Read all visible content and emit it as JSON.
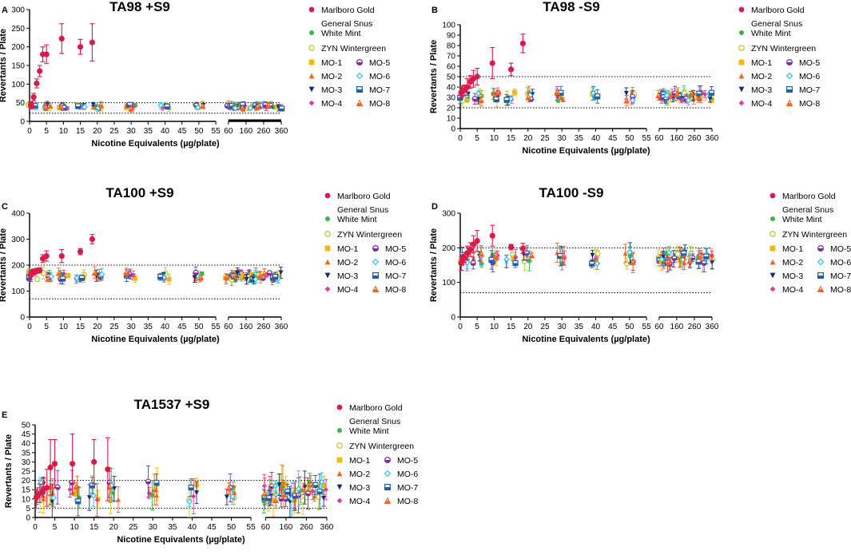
{
  "figure": {
    "x_axis_label": "Nicotine Equivalents (µg/plate)",
    "y_axis_label": "Revertants / Plate"
  },
  "legend": [
    {
      "key": "marlboro",
      "label": "Marlboro Gold",
      "color": "#d81b4a",
      "shape": "circle"
    },
    {
      "key": "general",
      "label": "General Snus\nWhite Mint",
      "color": "#3cb44b",
      "shape": "circle"
    },
    {
      "key": "zyn",
      "label": "ZYN Wintergreen",
      "color": "#b5d334",
      "shape": "circle-open"
    },
    {
      "key": "mo1",
      "label": "MO-1",
      "color": "#f5b800",
      "shape": "square"
    },
    {
      "key": "mo2",
      "label": "MO-2",
      "color": "#f26522",
      "shape": "triangle"
    },
    {
      "key": "mo3",
      "label": "MO-3",
      "color": "#1a2a6c",
      "shape": "triangle-down"
    },
    {
      "key": "mo4",
      "label": "MO-4",
      "color": "#e6399b",
      "shape": "diamond"
    },
    {
      "key": "mo5",
      "label": "MO-5",
      "color": "#7b2f9e",
      "shape": "circle-half"
    },
    {
      "key": "mo6",
      "label": "MO-6",
      "color": "#29c3e8",
      "shape": "diamond-open"
    },
    {
      "key": "mo7",
      "label": "MO-7",
      "color": "#1f5fa8",
      "shape": "square-half"
    },
    {
      "key": "mo8",
      "label": "MO-8",
      "color": "#f26522",
      "shape": "triangle-half"
    }
  ],
  "chart_data": [
    {
      "panel": "A",
      "title": "TA98 +S9",
      "type": "scatter",
      "ylim": [
        0,
        300
      ],
      "yticks": [
        0,
        50,
        100,
        150,
        200,
        250,
        300
      ],
      "reference_lines": [
        50,
        22
      ],
      "x_segments": [
        {
          "range": [
            0,
            55
          ],
          "ticks": [
            0,
            5,
            10,
            15,
            20,
            25,
            30,
            35,
            40,
            45,
            50,
            55
          ]
        },
        {
          "range": [
            60,
            360
          ],
          "ticks": [
            60,
            160,
            260,
            360
          ]
        }
      ],
      "xlabel": "Nicotine Equivalents (µg/plate)",
      "ylabel": "Revertants / Plate",
      "series": [
        {
          "key": "marlboro",
          "points": [
            [
              0.3,
              45,
              8
            ],
            [
              0.6,
              40,
              6
            ],
            [
              1.2,
              65,
              10
            ],
            [
              2.1,
              102,
              12
            ],
            [
              3,
              135,
              15
            ],
            [
              3.9,
              180,
              20
            ],
            [
              5,
              180,
              25
            ],
            [
              9.5,
              222,
              40
            ],
            [
              15,
              200,
              20
            ],
            [
              18.5,
              212,
              50
            ]
          ]
        }
      ],
      "cluster_centers": [
        1,
        5,
        10,
        15,
        20,
        30,
        40,
        50,
        70,
        95,
        120,
        160,
        190,
        230,
        290,
        340
      ],
      "cluster_band": [
        40,
        8
      ]
    },
    {
      "panel": "B",
      "title": "TA98 -S9",
      "type": "scatter",
      "ylim": [
        0,
        100
      ],
      "yticks": [
        0,
        10,
        20,
        30,
        40,
        50,
        60,
        70,
        80,
        90,
        100
      ],
      "reference_lines": [
        50,
        20
      ],
      "x_segments": [
        {
          "range": [
            0,
            55
          ],
          "ticks": [
            0,
            5,
            10,
            15,
            20,
            25,
            30,
            35,
            40,
            45,
            50,
            55
          ]
        },
        {
          "range": [
            60,
            360
          ],
          "ticks": [
            60,
            160,
            260,
            360
          ]
        }
      ],
      "xlabel": "Nicotine Equivalents (µg/plate)",
      "ylabel": "Revertants / Plate",
      "series": [
        {
          "key": "marlboro",
          "points": [
            [
              0.3,
              35,
              5
            ],
            [
              0.6,
              36,
              5
            ],
            [
              1.2,
              37,
              5
            ],
            [
              2.1,
              40,
              8
            ],
            [
              3,
              45,
              6
            ],
            [
              3.9,
              48,
              8
            ],
            [
              5,
              50,
              8
            ],
            [
              9.5,
              63,
              15
            ],
            [
              15,
              57,
              6
            ],
            [
              18.5,
              82,
              9
            ]
          ]
        }
      ],
      "cluster_centers": [
        1,
        5,
        10,
        15,
        20,
        30,
        40,
        50,
        70,
        95,
        120,
        160,
        190,
        230,
        290,
        340
      ],
      "cluster_band": [
        31,
        6
      ]
    },
    {
      "panel": "C",
      "title": "TA100 +S9",
      "type": "scatter",
      "ylim": [
        0,
        400
      ],
      "yticks": [
        0,
        100,
        200,
        300,
        400
      ],
      "reference_lines": [
        200,
        70
      ],
      "x_segments": [
        {
          "range": [
            0,
            55
          ],
          "ticks": [
            0,
            5,
            10,
            15,
            20,
            25,
            30,
            35,
            40,
            45,
            50,
            55
          ]
        },
        {
          "range": [
            60,
            360
          ],
          "ticks": [
            60,
            160,
            260,
            360
          ]
        }
      ],
      "xlabel": "Nicotine Equivalents (µg/plate)",
      "ylabel": "Revertants / Plate",
      "series": [
        {
          "key": "marlboro",
          "points": [
            [
              0.3,
              160,
              15
            ],
            [
              0.6,
              170,
              12
            ],
            [
              1.2,
              175,
              10
            ],
            [
              2.1,
              178,
              10
            ],
            [
              3,
              180,
              10
            ],
            [
              3.9,
              225,
              15
            ],
            [
              5,
              235,
              20
            ],
            [
              9.5,
              235,
              25
            ],
            [
              15,
              252,
              12
            ],
            [
              18.5,
              300,
              18
            ]
          ]
        }
      ],
      "cluster_centers": [
        1,
        5,
        10,
        15,
        20,
        30,
        40,
        50,
        70,
        95,
        120,
        160,
        190,
        230,
        290,
        340
      ],
      "cluster_band": [
        158,
        20
      ]
    },
    {
      "panel": "D",
      "title": "TA100 -S9",
      "type": "scatter",
      "ylim": [
        0,
        300
      ],
      "yticks": [
        0,
        100,
        200,
        300
      ],
      "reference_lines": [
        200,
        70
      ],
      "x_segments": [
        {
          "range": [
            0,
            55
          ],
          "ticks": [
            0,
            5,
            10,
            15,
            20,
            25,
            30,
            35,
            40,
            45,
            50,
            55
          ]
        },
        {
          "range": [
            60,
            360
          ],
          "ticks": [
            60,
            160,
            260,
            360
          ]
        }
      ],
      "xlabel": "Nicotine Equivalents (µg/plate)",
      "ylabel": "Revertants / Plate",
      "series": [
        {
          "key": "marlboro",
          "points": [
            [
              0.3,
              155,
              20
            ],
            [
              0.6,
              165,
              15
            ],
            [
              1.2,
              170,
              12
            ],
            [
              2.1,
              185,
              20
            ],
            [
              3,
              195,
              20
            ],
            [
              3.9,
              210,
              25
            ],
            [
              5,
              220,
              30
            ],
            [
              9.5,
              235,
              30
            ],
            [
              15,
              202,
              8
            ],
            [
              18.5,
              198,
              15
            ]
          ]
        }
      ],
      "cluster_centers": [
        1,
        5,
        10,
        15,
        20,
        30,
        40,
        50,
        70,
        95,
        120,
        160,
        190,
        230,
        290,
        340
      ],
      "cluster_band": [
        170,
        25
      ]
    },
    {
      "panel": "E",
      "title": "TA1537 +S9",
      "type": "scatter",
      "ylim": [
        0,
        50
      ],
      "yticks": [
        0,
        5,
        10,
        15,
        20,
        25,
        30,
        35,
        40,
        45,
        50
      ],
      "reference_lines": [
        20,
        5
      ],
      "x_segments": [
        {
          "range": [
            0,
            55
          ],
          "ticks": [
            0,
            5,
            10,
            15,
            20,
            25,
            30,
            35,
            40,
            45,
            50,
            55
          ]
        },
        {
          "range": [
            60,
            360
          ],
          "ticks": [
            60,
            160,
            260,
            360
          ]
        }
      ],
      "xlabel": "Nicotine Equivalents (µg/plate)",
      "ylabel": "Revertants / Plate",
      "series": [
        {
          "key": "marlboro",
          "points": [
            [
              0.3,
              11,
              4
            ],
            [
              0.6,
              12,
              4
            ],
            [
              1.2,
              13,
              5
            ],
            [
              2.1,
              15,
              6
            ],
            [
              3,
              16,
              10
            ],
            [
              3.9,
              27,
              15
            ],
            [
              5,
              29,
              13
            ],
            [
              9.5,
              29,
              16
            ],
            [
              15,
              30,
              12
            ],
            [
              18.5,
              26,
              17
            ]
          ]
        }
      ],
      "cluster_centers": [
        1,
        5,
        10,
        15,
        20,
        30,
        40,
        50,
        70,
        95,
        120,
        160,
        190,
        230,
        290,
        340
      ],
      "cluster_band": [
        14,
        8
      ]
    }
  ]
}
